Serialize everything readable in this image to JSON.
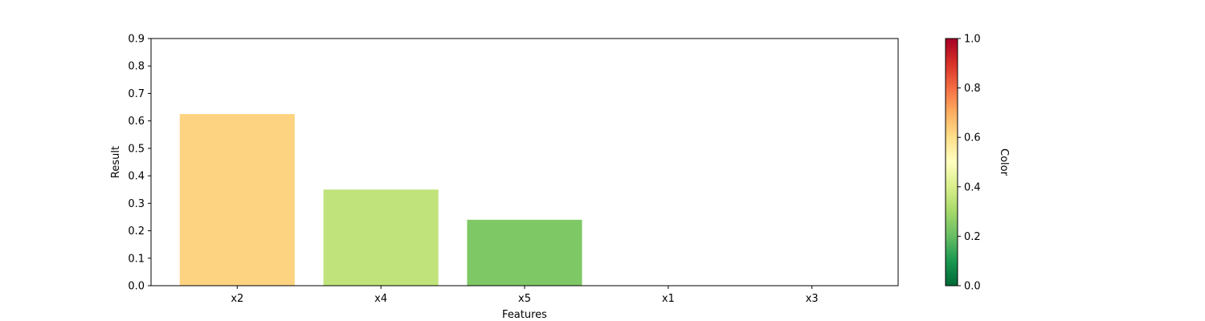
{
  "chart_data": {
    "type": "bar",
    "categories": [
      "x2",
      "x4",
      "x5",
      "x1",
      "x3"
    ],
    "values": [
      0.625,
      0.35,
      0.24,
      0,
      0
    ],
    "bar_colors": [
      "#fdd381",
      "#c0e47b",
      "#7fc866",
      "#1a9850",
      "#1a9850"
    ],
    "xlabel": "Features",
    "ylabel": "Result",
    "ylim": [
      0,
      0.9
    ],
    "yticks": [
      "0.0",
      "0.1",
      "0.2",
      "0.3",
      "0.4",
      "0.5",
      "0.6",
      "0.7",
      "0.8",
      "0.9"
    ],
    "grid": false,
    "colorbar": {
      "label": "Color",
      "colormap": "RdYlGn_r",
      "range": [
        0,
        1
      ],
      "ticks": [
        "0.0",
        "0.2",
        "0.4",
        "0.6",
        "0.8",
        "1.0"
      ],
      "colors": [
        "#006837",
        "#1a9850",
        "#66bd63",
        "#a6d96a",
        "#d9ef8b",
        "#ffffbf",
        "#fee08b",
        "#fdae61",
        "#f46d43",
        "#d73027",
        "#a50026"
      ]
    }
  }
}
